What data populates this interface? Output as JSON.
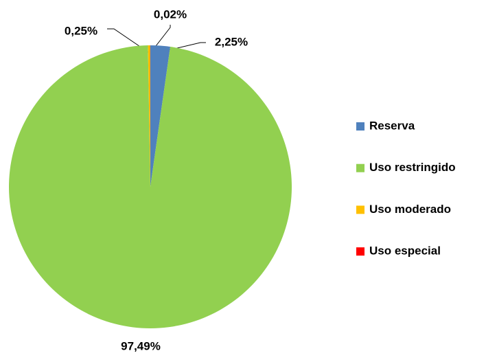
{
  "chart_data": {
    "type": "pie",
    "categories": [
      "Reserva",
      "Uso restringido",
      "Uso moderado",
      "Uso especial"
    ],
    "values": [
      2.25,
      97.49,
      0.25,
      0.02
    ],
    "value_labels": [
      "2,25%",
      "97,49%",
      "0,25%",
      "0,02%"
    ],
    "colors": [
      "#4f81bd",
      "#92d050",
      "#ffc000",
      "#ff0000"
    ],
    "legend": "right"
  }
}
